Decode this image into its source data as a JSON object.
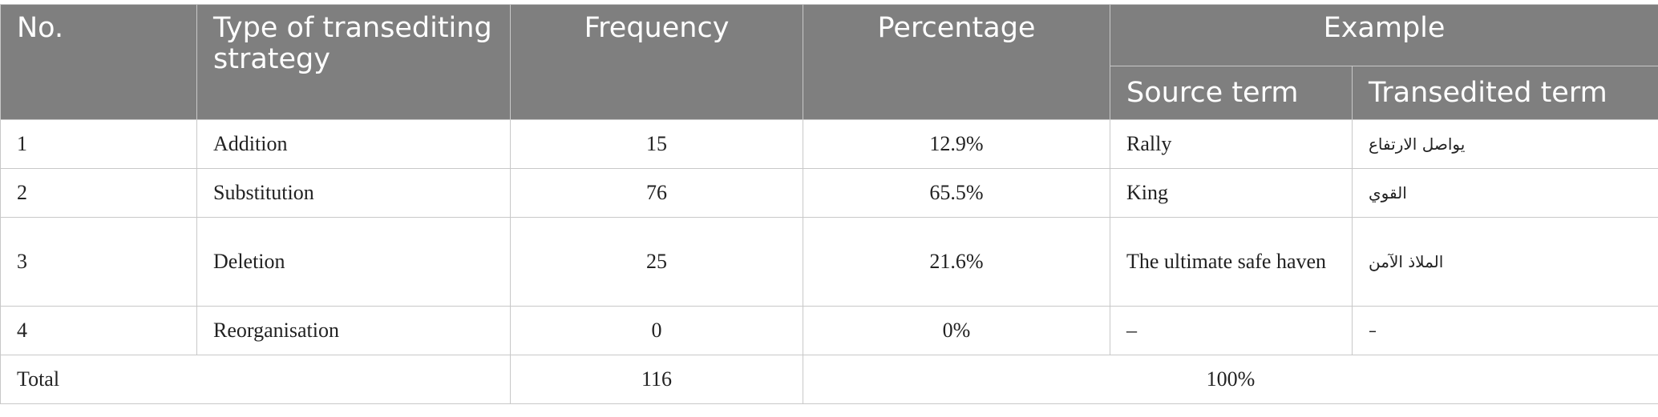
{
  "table": {
    "header": {
      "no": "No.",
      "type": "Type of transediting strategy",
      "frequency": "Frequency",
      "percentage": "Percentage",
      "example": "Example",
      "source": "Source term",
      "transedited": "Transedited term"
    },
    "rows": [
      [
        "1",
        "Addition",
        "15",
        "12.9%",
        "Rally",
        "يواصل الارتفاع"
      ],
      [
        "2",
        "Substitution",
        "76",
        "65.5%",
        "King",
        "القوي"
      ],
      [
        "3",
        "Deletion",
        "25",
        "21.6%",
        "The ultimate safe haven",
        "الملاذ الآمن"
      ],
      [
        "4",
        "Reorganisation",
        "0",
        "0%",
        "–",
        "–"
      ]
    ],
    "total": {
      "label": "Total",
      "frequency": "116",
      "percentage": "100%"
    }
  }
}
